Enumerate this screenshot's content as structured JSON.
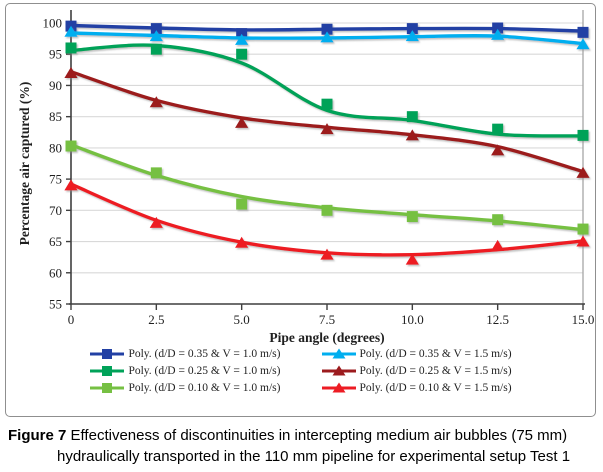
{
  "caption": {
    "label": "Figure 7",
    "line1": "Effectiveness of discontinuities in intercepting medium air bubbles (75 mm)",
    "line2": "hydraulically transported in the 110 mm pipeline for experimental setup Test 1"
  },
  "chart_data": {
    "type": "scatter",
    "subtype": "data points with polynomial trendlines",
    "xlabel": "Pipe angle (degrees)",
    "ylabel": "Percentage air captured (%)",
    "xlim": [
      0,
      15
    ],
    "ylim": [
      55,
      100
    ],
    "grid": "horizontal only",
    "legend_position": "bottom, two columns",
    "x": [
      0,
      2.5,
      5,
      7.5,
      10,
      12.5,
      15
    ],
    "x_tick_labels": [
      "0",
      "2.5",
      "5.0",
      "7.5",
      "10.0",
      "12.5",
      "15.0"
    ],
    "y_ticks": [
      55,
      60,
      65,
      70,
      75,
      80,
      85,
      90,
      95,
      100
    ],
    "series": [
      {
        "name": "Poly. (d/D = 0.35 & V = 1.0 m/s)",
        "marker": "square",
        "color": "#2240a4",
        "values": [
          99.5,
          99.1,
          98.3,
          99.0,
          99.1,
          99.2,
          98.5
        ],
        "trend": [
          99.6,
          99.2,
          98.9,
          99.0,
          99.1,
          99.1,
          98.7
        ]
      },
      {
        "name": "Poly. (d/D = 0.35 & V = 1.5 m/s)",
        "marker": "triangle",
        "color": "#00aeef",
        "values": [
          98.6,
          97.9,
          97.3,
          97.7,
          97.9,
          98.1,
          96.6
        ],
        "trend": [
          98.4,
          98.0,
          97.6,
          97.6,
          97.8,
          97.9,
          96.7
        ]
      },
      {
        "name": "Poly. (d/D = 0.25 & V = 1.0 m/s)",
        "marker": "square",
        "color": "#00a259",
        "values": [
          96.0,
          95.8,
          95.0,
          87.0,
          85.0,
          83.0,
          82.0
        ],
        "trend": [
          95.6,
          96.4,
          93.6,
          86.0,
          84.4,
          82.2,
          81.9
        ]
      },
      {
        "name": "Poly. (d/D = 0.25 & V = 1.5 m/s)",
        "marker": "triangle",
        "color": "#9c1b1e",
        "values": [
          92.0,
          87.3,
          84.0,
          83.0,
          82.0,
          79.6,
          76.0
        ],
        "trend": [
          92.2,
          87.6,
          84.8,
          83.3,
          82.1,
          80.2,
          76.2
        ]
      },
      {
        "name": "Poly. (d/D = 0.10 & V = 1.0 m/s)",
        "marker": "square",
        "color": "#76c043",
        "values": [
          80.3,
          76.0,
          71.0,
          70.0,
          69.0,
          68.5,
          67.0
        ],
        "trend": [
          80.5,
          75.6,
          72.2,
          70.4,
          69.3,
          68.3,
          66.9
        ]
      },
      {
        "name": "Poly. (d/D = 0.10 & V = 1.5 m/s)",
        "marker": "triangle",
        "color": "#ed1c24",
        "values": [
          74.0,
          68.0,
          64.8,
          62.9,
          62.1,
          64.3,
          65.0
        ],
        "trend": [
          74.2,
          68.4,
          64.9,
          63.2,
          62.9,
          63.7,
          65.1
        ]
      }
    ]
  }
}
